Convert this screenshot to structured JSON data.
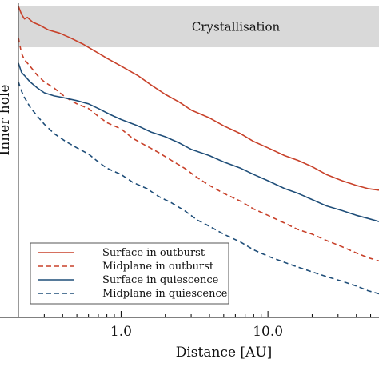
{
  "chart_data": {
    "type": "line",
    "xlabel": "Distance [AU]",
    "ylabel": "Inner hole",
    "xscale": "log",
    "xlim": [
      0.2,
      57
    ],
    "ylim": [
      0,
      1
    ],
    "x_ticks": [
      {
        "value": 1.0,
        "label": "1.0"
      },
      {
        "value": 10.0,
        "label": "10.0"
      }
    ],
    "band": {
      "label": "Crystallisation",
      "y_range": [
        0.86,
        0.99
      ],
      "color": "#d9d9d9"
    },
    "legend": {
      "placement": "lower-left"
    },
    "series": [
      {
        "name": "Surface in outburst",
        "color": "#c8412a",
        "dash": "solid",
        "points": [
          [
            0.2,
            0.99
          ],
          [
            0.21,
            0.965
          ],
          [
            0.22,
            0.95
          ],
          [
            0.23,
            0.955
          ],
          [
            0.25,
            0.94
          ],
          [
            0.28,
            0.93
          ],
          [
            0.32,
            0.915
          ],
          [
            0.38,
            0.905
          ],
          [
            0.45,
            0.89
          ],
          [
            0.55,
            0.87
          ],
          [
            0.65,
            0.85
          ],
          [
            0.8,
            0.825
          ],
          [
            1.0,
            0.8
          ],
          [
            1.3,
            0.77
          ],
          [
            1.6,
            0.74
          ],
          [
            2.0,
            0.71
          ],
          [
            2.5,
            0.685
          ],
          [
            3.0,
            0.66
          ],
          [
            4.0,
            0.635
          ],
          [
            5.0,
            0.61
          ],
          [
            6.5,
            0.585
          ],
          [
            8.0,
            0.56
          ],
          [
            10.0,
            0.54
          ],
          [
            13.0,
            0.515
          ],
          [
            16.0,
            0.5
          ],
          [
            20.0,
            0.48
          ],
          [
            25.0,
            0.455
          ],
          [
            32.0,
            0.435
          ],
          [
            40.0,
            0.42
          ],
          [
            48.0,
            0.41
          ],
          [
            57.0,
            0.405
          ]
        ]
      },
      {
        "name": "Midplane in outburst",
        "color": "#c8412a",
        "dash": "dashed",
        "points": [
          [
            0.2,
            0.89
          ],
          [
            0.21,
            0.84
          ],
          [
            0.22,
            0.82
          ],
          [
            0.24,
            0.8
          ],
          [
            0.27,
            0.77
          ],
          [
            0.3,
            0.75
          ],
          [
            0.35,
            0.73
          ],
          [
            0.42,
            0.7
          ],
          [
            0.5,
            0.68
          ],
          [
            0.6,
            0.665
          ],
          [
            0.7,
            0.64
          ],
          [
            0.8,
            0.62
          ],
          [
            1.0,
            0.6
          ],
          [
            1.2,
            0.57
          ],
          [
            1.5,
            0.545
          ],
          [
            1.8,
            0.525
          ],
          [
            2.2,
            0.5
          ],
          [
            2.7,
            0.475
          ],
          [
            3.3,
            0.445
          ],
          [
            4.0,
            0.42
          ],
          [
            5.0,
            0.395
          ],
          [
            6.5,
            0.37
          ],
          [
            8.0,
            0.345
          ],
          [
            10.0,
            0.325
          ],
          [
            13.0,
            0.3
          ],
          [
            16.0,
            0.28
          ],
          [
            20.0,
            0.265
          ],
          [
            25.0,
            0.245
          ],
          [
            32.0,
            0.225
          ],
          [
            40.0,
            0.205
          ],
          [
            48.0,
            0.19
          ],
          [
            57.0,
            0.18
          ]
        ]
      },
      {
        "name": "Surface in quiescence",
        "color": "#1f4e79",
        "dash": "solid",
        "points": [
          [
            0.2,
            0.81
          ],
          [
            0.21,
            0.78
          ],
          [
            0.22,
            0.77
          ],
          [
            0.24,
            0.75
          ],
          [
            0.27,
            0.73
          ],
          [
            0.3,
            0.715
          ],
          [
            0.35,
            0.705
          ],
          [
            0.4,
            0.7
          ],
          [
            0.5,
            0.69
          ],
          [
            0.6,
            0.68
          ],
          [
            0.7,
            0.665
          ],
          [
            0.85,
            0.645
          ],
          [
            1.0,
            0.63
          ],
          [
            1.3,
            0.61
          ],
          [
            1.6,
            0.59
          ],
          [
            2.0,
            0.575
          ],
          [
            2.5,
            0.555
          ],
          [
            3.0,
            0.535
          ],
          [
            4.0,
            0.515
          ],
          [
            5.0,
            0.495
          ],
          [
            6.5,
            0.475
          ],
          [
            8.0,
            0.455
          ],
          [
            10.0,
            0.435
          ],
          [
            13.0,
            0.41
          ],
          [
            16.0,
            0.395
          ],
          [
            20.0,
            0.375
          ],
          [
            25.0,
            0.355
          ],
          [
            32.0,
            0.34
          ],
          [
            40.0,
            0.325
          ],
          [
            48.0,
            0.315
          ],
          [
            57.0,
            0.305
          ]
        ]
      },
      {
        "name": "Midplane in quiescence",
        "color": "#1f4e79",
        "dash": "dashed",
        "points": [
          [
            0.2,
            0.75
          ],
          [
            0.21,
            0.72
          ],
          [
            0.22,
            0.7
          ],
          [
            0.24,
            0.67
          ],
          [
            0.27,
            0.64
          ],
          [
            0.3,
            0.615
          ],
          [
            0.35,
            0.585
          ],
          [
            0.42,
            0.56
          ],
          [
            0.5,
            0.54
          ],
          [
            0.6,
            0.52
          ],
          [
            0.7,
            0.495
          ],
          [
            0.8,
            0.475
          ],
          [
            1.0,
            0.455
          ],
          [
            1.2,
            0.43
          ],
          [
            1.5,
            0.41
          ],
          [
            1.8,
            0.385
          ],
          [
            2.2,
            0.365
          ],
          [
            2.7,
            0.34
          ],
          [
            3.3,
            0.31
          ],
          [
            4.0,
            0.29
          ],
          [
            5.0,
            0.265
          ],
          [
            6.5,
            0.24
          ],
          [
            8.0,
            0.215
          ],
          [
            10.0,
            0.195
          ],
          [
            13.0,
            0.175
          ],
          [
            16.0,
            0.16
          ],
          [
            20.0,
            0.145
          ],
          [
            25.0,
            0.13
          ],
          [
            32.0,
            0.115
          ],
          [
            40.0,
            0.1
          ],
          [
            48.0,
            0.085
          ],
          [
            57.0,
            0.075
          ]
        ]
      }
    ]
  }
}
